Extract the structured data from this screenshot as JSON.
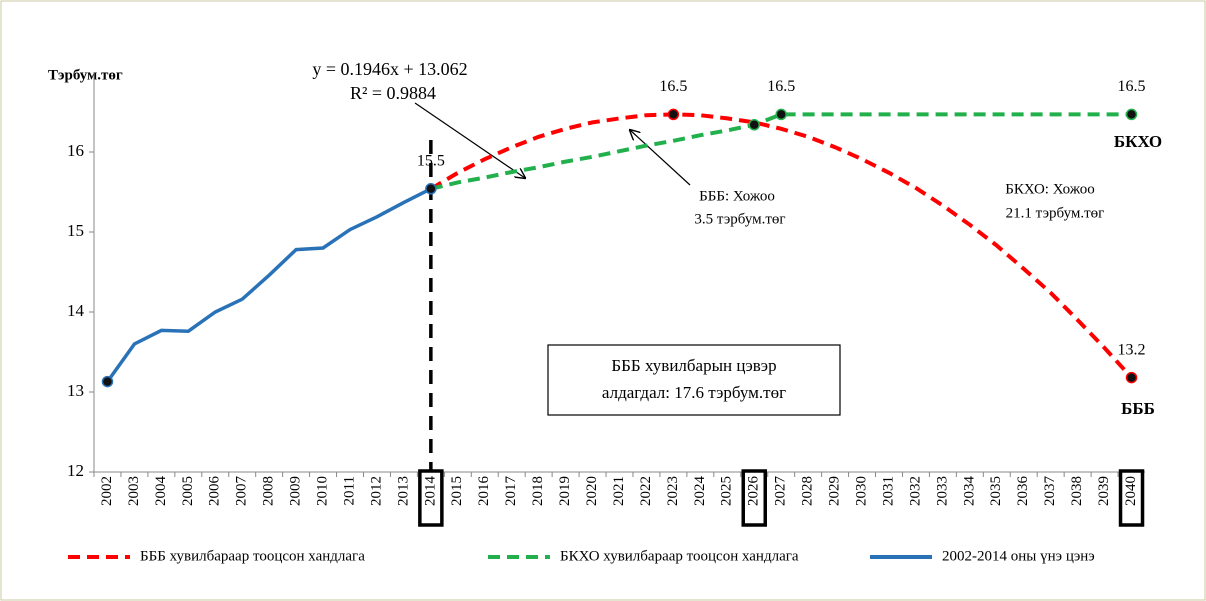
{
  "chart_data": {
    "type": "line",
    "y_axis_label": "Тэрбум.төг",
    "categories": [
      "2002",
      "2003",
      "2004",
      "2005",
      "2006",
      "2007",
      "2008",
      "2009",
      "2010",
      "2011",
      "2012",
      "2013",
      "2014",
      "2015",
      "2016",
      "2017",
      "2018",
      "2019",
      "2020",
      "2021",
      "2022",
      "2023",
      "2024",
      "2025",
      "2026",
      "2027",
      "2028",
      "2029",
      "2030",
      "2031",
      "2032",
      "2033",
      "2034",
      "2035",
      "2036",
      "2037",
      "2038",
      "2039",
      "2040"
    ],
    "ylim": [
      12,
      17
    ],
    "yticks": [
      12,
      13,
      14,
      15,
      16
    ],
    "highlighted_categories": [
      "2014",
      "2026",
      "2040"
    ],
    "vertical_line_at": "2014",
    "series": [
      {
        "name": "БББ хувилбараар тооцсон хандлага",
        "color": "#ff0000",
        "dashed": true,
        "values": [
          null,
          null,
          null,
          null,
          null,
          null,
          null,
          null,
          null,
          null,
          null,
          null,
          15.54,
          15.74,
          15.91,
          16.06,
          16.19,
          16.29,
          16.37,
          16.42,
          16.46,
          16.47,
          16.46,
          16.42,
          16.37,
          16.29,
          16.19,
          16.06,
          15.91,
          15.74,
          15.55,
          15.33,
          15.09,
          14.83,
          14.54,
          14.24,
          13.9,
          13.55,
          13.18
        ],
        "value_labels": [
          null,
          null,
          null,
          null,
          null,
          null,
          null,
          null,
          null,
          null,
          null,
          null,
          null,
          null,
          null,
          null,
          null,
          null,
          null,
          null,
          null,
          "16.5",
          null,
          null,
          null,
          null,
          null,
          null,
          null,
          null,
          null,
          null,
          null,
          null,
          null,
          null,
          null,
          null,
          "13.2"
        ],
        "markers": [
          "2023",
          "2040"
        ]
      },
      {
        "name": "БКХО хувилбараар тооцсон хандлага",
        "color": "#21b04b",
        "dashed": true,
        "values": [
          null,
          null,
          null,
          null,
          null,
          null,
          null,
          null,
          null,
          null,
          null,
          null,
          15.54,
          15.62,
          15.68,
          15.75,
          15.81,
          15.88,
          15.94,
          16.01,
          16.08,
          16.14,
          16.21,
          16.27,
          16.34,
          16.47,
          16.47,
          16.47,
          16.47,
          16.47,
          16.47,
          16.47,
          16.47,
          16.47,
          16.47,
          16.47,
          16.47,
          16.47,
          16.47
        ],
        "value_labels": [
          null,
          null,
          null,
          null,
          null,
          null,
          null,
          null,
          null,
          null,
          null,
          null,
          null,
          null,
          null,
          null,
          null,
          null,
          null,
          null,
          null,
          null,
          null,
          null,
          null,
          "16.5",
          null,
          null,
          null,
          null,
          null,
          null,
          null,
          null,
          null,
          null,
          null,
          null,
          "16.5"
        ],
        "markers": [
          "2026",
          "2027",
          "2040"
        ]
      },
      {
        "name": "2002-2014 оны үнэ цэнэ",
        "color": "#2a72b8",
        "dashed": false,
        "values": [
          13.13,
          13.6,
          13.77,
          13.76,
          14.0,
          14.16,
          14.46,
          14.78,
          14.8,
          15.03,
          15.19,
          15.37,
          15.54,
          null,
          null,
          null,
          null,
          null,
          null,
          null,
          null,
          null,
          null,
          null,
          null,
          null,
          null,
          null,
          null,
          null,
          null,
          null,
          null,
          null,
          null,
          null,
          null,
          null,
          null
        ],
        "value_labels": [
          null,
          null,
          null,
          null,
          null,
          null,
          null,
          null,
          null,
          null,
          null,
          null,
          "15.5",
          null,
          null,
          null,
          null,
          null,
          null,
          null,
          null,
          null,
          null,
          null,
          null,
          null,
          null,
          null,
          null,
          null,
          null,
          null,
          null,
          null,
          null,
          null,
          null,
          null,
          null
        ],
        "markers": [
          "2002",
          "2014"
        ]
      }
    ],
    "annotations": {
      "equation": "y = 0.1946x + 13.062",
      "r_squared": "R² = 0.9884",
      "bbb_gain": [
        "БББ: Хожоо",
        "3.5 тэрбум.төг"
      ],
      "bkho_gain": [
        "БКХО: Хожоо",
        "21.1 тэрбум.төг"
      ],
      "loss_box": [
        "БББ хувилбарын цэвэр",
        "алдагдал: 17.6 тэрбум.төг"
      ],
      "bkho_end": "БКХО",
      "bbb_end": "БББ"
    }
  }
}
